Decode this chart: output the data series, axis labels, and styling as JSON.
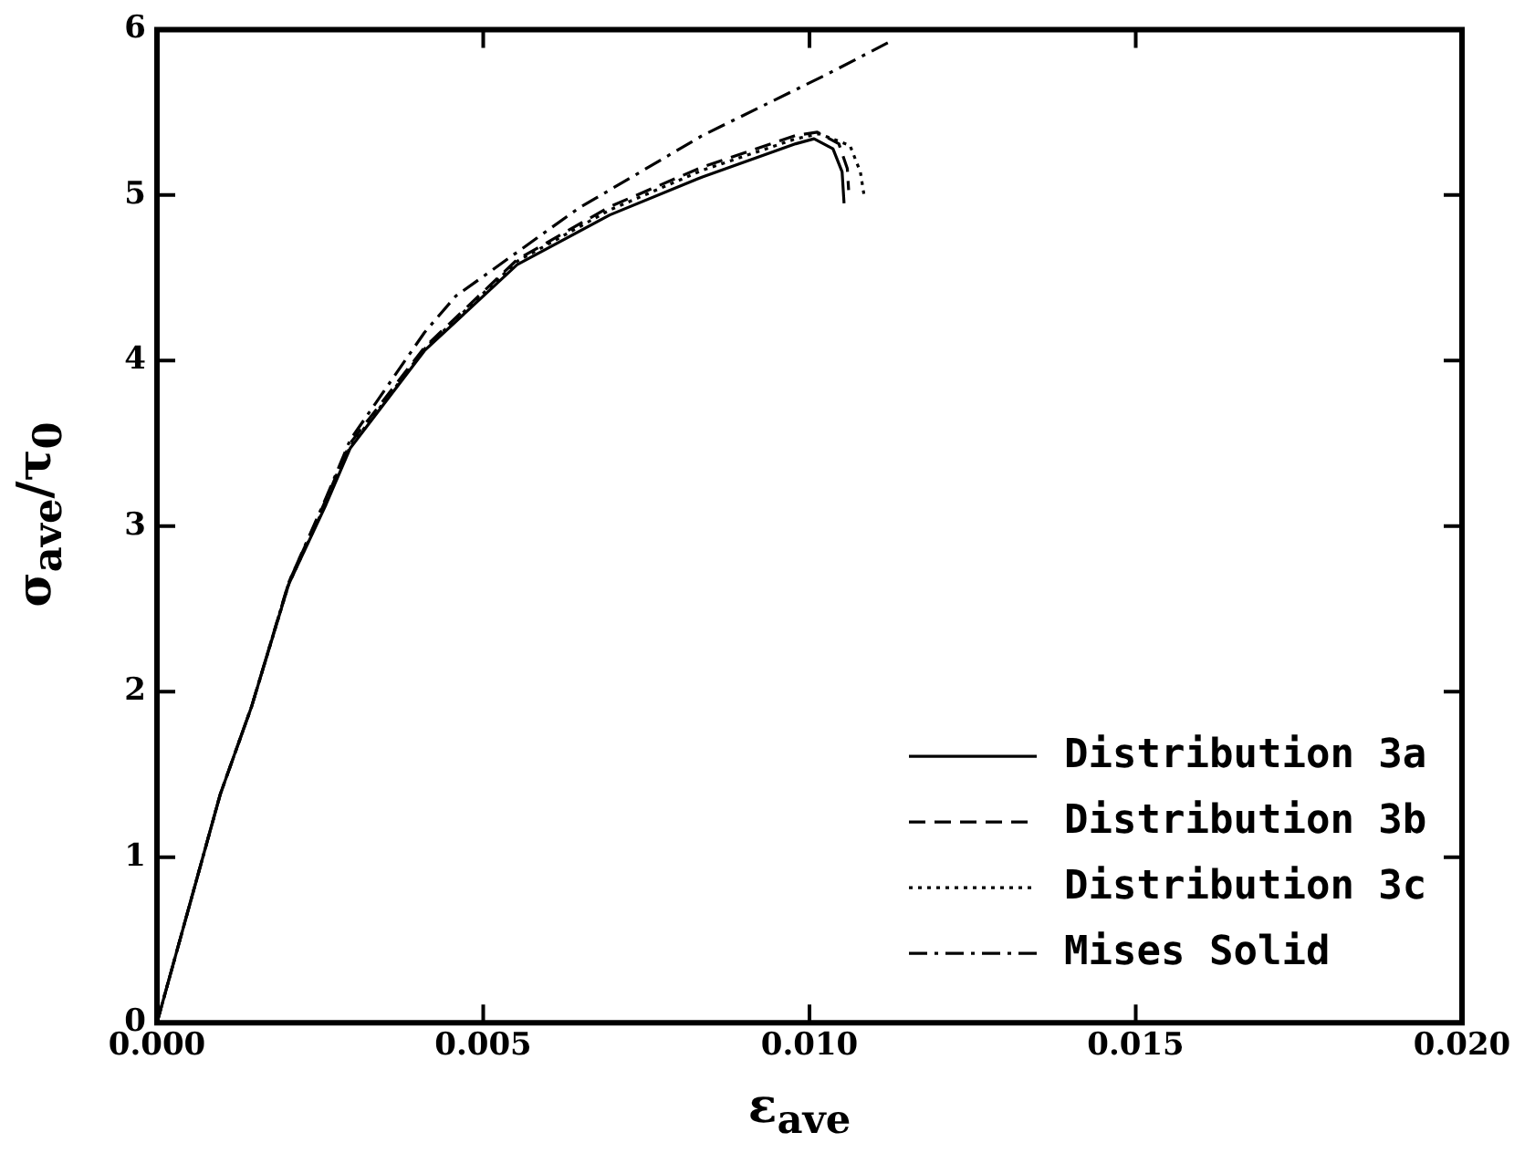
{
  "chart_data": {
    "type": "line",
    "xlabel": "ε$_{ave}$",
    "ylabel": "σ$_{ave}$/τ$_{0}$",
    "xlim": [
      0,
      0.02
    ],
    "ylim": [
      0,
      6
    ],
    "xticks": [
      {
        "value": 0,
        "label": "0.000"
      },
      {
        "value": 0.005,
        "label": "0.005"
      },
      {
        "value": 0.01,
        "label": "0.010"
      },
      {
        "value": 0.015,
        "label": "0.015"
      },
      {
        "value": 0.02,
        "label": "0.020"
      }
    ],
    "yticks": [
      0,
      1,
      2,
      3,
      4,
      5,
      6
    ],
    "grid": false,
    "legend": "bottom right",
    "marker": "none",
    "series": [
      {
        "name": "Distribution 3a",
        "color": "#000000",
        "line_style": "solid",
        "x": [
          0,
          0.00097,
          0.00145,
          0.00202,
          0.00259,
          0.00296,
          0.0041,
          0.00552,
          0.00694,
          0.00836,
          0.00979,
          0.01007,
          0.01036,
          0.0105,
          0.01053
        ],
        "values": [
          0,
          1.38,
          1.91,
          2.65,
          3.13,
          3.47,
          4.06,
          4.58,
          4.88,
          5.11,
          5.31,
          5.34,
          5.28,
          5.14,
          4.95
        ]
      },
      {
        "name": "Distribution 3b",
        "color": "#000000",
        "line_style": "dashed",
        "x": [
          0,
          0.00097,
          0.00145,
          0.00202,
          0.00259,
          0.00296,
          0.0041,
          0.00552,
          0.00694,
          0.00836,
          0.00979,
          0.01012,
          0.01045,
          0.01058,
          0.0106
        ],
        "values": [
          0,
          1.38,
          1.91,
          2.66,
          3.16,
          3.5,
          4.08,
          4.61,
          4.93,
          5.17,
          5.36,
          5.38,
          5.31,
          5.16,
          5.03
        ]
      },
      {
        "name": "Distribution 3c",
        "color": "#000000",
        "line_style": "dotted",
        "x": [
          0,
          0.00097,
          0.00145,
          0.00202,
          0.00259,
          0.00296,
          0.0041,
          0.00552,
          0.00694,
          0.00836,
          0.00979,
          0.01015,
          0.01062,
          0.01078,
          0.01084
        ],
        "values": [
          0,
          1.38,
          1.91,
          2.65,
          3.14,
          3.48,
          4.07,
          4.6,
          4.91,
          5.15,
          5.34,
          5.37,
          5.3,
          5.14,
          4.99
        ]
      },
      {
        "name": "Mises Solid",
        "color": "#000000",
        "line_style": "dashdot",
        "x": [
          0,
          0.00097,
          0.00145,
          0.00202,
          0.00259,
          0.00296,
          0.0041,
          0.00458,
          0.00646,
          0.00836,
          0.01027,
          0.0112
        ],
        "values": [
          0,
          1.38,
          1.91,
          2.66,
          3.17,
          3.52,
          4.17,
          4.39,
          4.92,
          5.36,
          5.73,
          5.92
        ]
      }
    ]
  }
}
